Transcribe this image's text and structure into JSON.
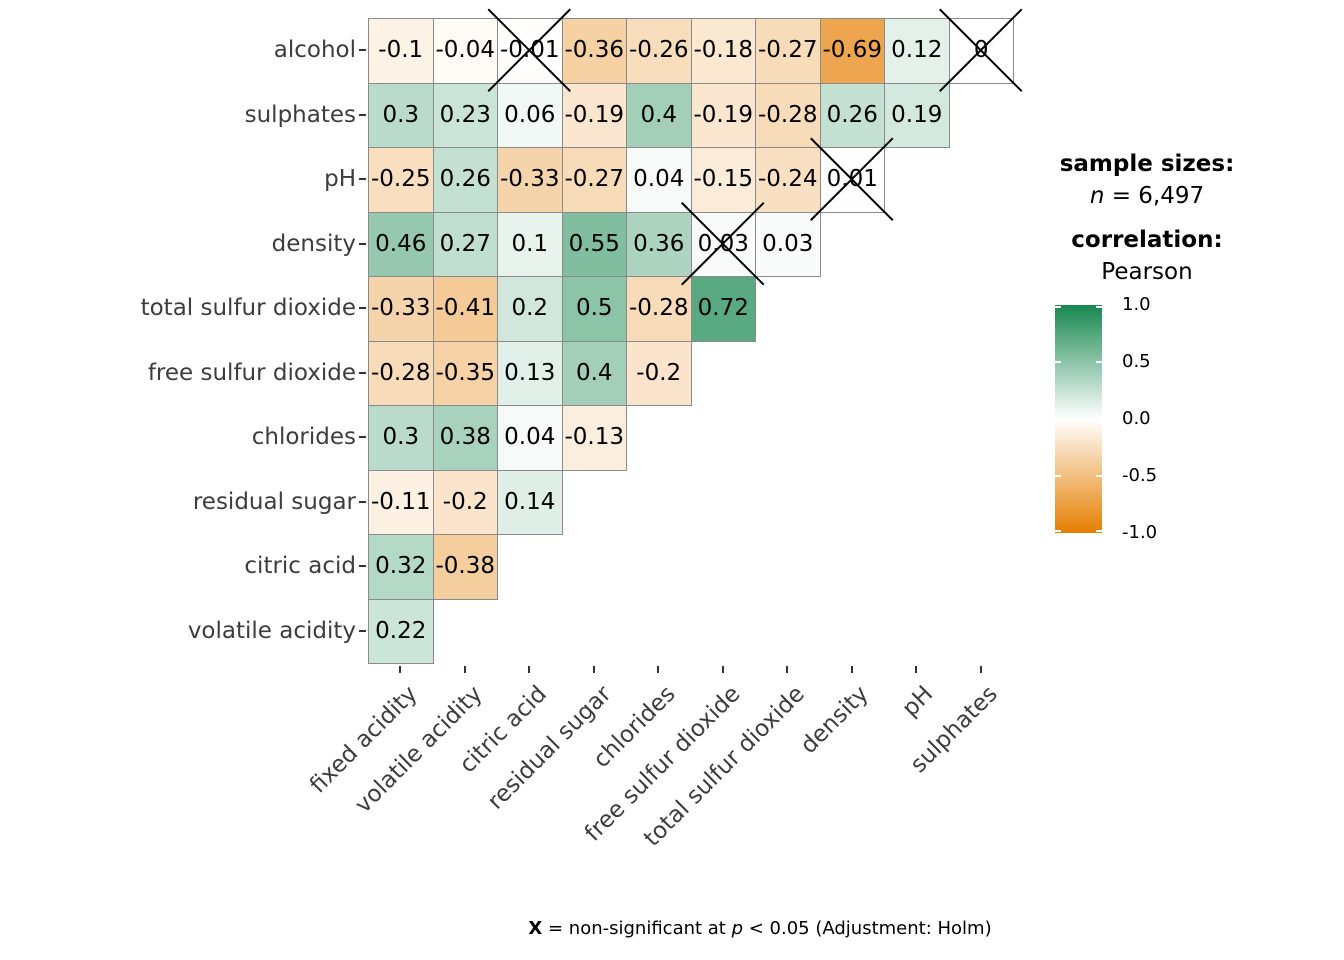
{
  "chart_data": {
    "type": "heatmap",
    "description": "Lower-triangular Pearson correlation matrix (correlogram) of wine physicochemical properties",
    "x_categories": [
      "fixed acidity",
      "volatile acidity",
      "citric acid",
      "residual sugar",
      "chlorides",
      "free sulfur dioxide",
      "total sulfur dioxide",
      "density",
      "pH",
      "sulphates"
    ],
    "y_categories_top_to_bottom": [
      "alcohol",
      "sulphates",
      "pH",
      "density",
      "total sulfur dioxide",
      "free sulfur dioxide",
      "chlorides",
      "residual sugar",
      "citric acid",
      "volatile acidity"
    ],
    "value_range": [
      -1,
      1
    ],
    "rows": [
      {
        "name": "alcohol",
        "values": [
          -0.1,
          -0.04,
          -0.01,
          -0.36,
          -0.26,
          -0.18,
          -0.27,
          -0.69,
          0.12,
          0
        ],
        "non_significant_col_indexes": [
          2,
          9
        ]
      },
      {
        "name": "sulphates",
        "values": [
          0.3,
          0.23,
          0.06,
          -0.19,
          0.4,
          -0.19,
          -0.28,
          0.26,
          0.19
        ],
        "non_significant_col_indexes": []
      },
      {
        "name": "pH",
        "values": [
          -0.25,
          0.26,
          -0.33,
          -0.27,
          0.04,
          -0.15,
          -0.24,
          0.01
        ],
        "non_significant_col_indexes": [
          7
        ]
      },
      {
        "name": "density",
        "values": [
          0.46,
          0.27,
          0.1,
          0.55,
          0.36,
          0.03,
          0.03
        ],
        "non_significant_col_indexes": [
          5
        ]
      },
      {
        "name": "total sulfur dioxide",
        "values": [
          -0.33,
          -0.41,
          0.2,
          0.5,
          -0.28,
          0.72
        ],
        "non_significant_col_indexes": []
      },
      {
        "name": "free sulfur dioxide",
        "values": [
          -0.28,
          -0.35,
          0.13,
          0.4,
          -0.2
        ],
        "non_significant_col_indexes": []
      },
      {
        "name": "chlorides",
        "values": [
          0.3,
          0.38,
          0.04,
          -0.13
        ],
        "non_significant_col_indexes": []
      },
      {
        "name": "residual sugar",
        "values": [
          -0.11,
          -0.2,
          0.14
        ],
        "non_significant_col_indexes": []
      },
      {
        "name": "citric acid",
        "values": [
          0.32,
          -0.38
        ],
        "non_significant_col_indexes": []
      },
      {
        "name": "volatile acidity",
        "values": [
          0.22
        ],
        "non_significant_col_indexes": []
      }
    ],
    "colorbar": {
      "tick_labels": [
        "1.0",
        "0.5",
        "0.0",
        "-0.5",
        "-1.0"
      ],
      "high_color": "#198851",
      "mid_color": "#ffffff",
      "low_color": "#e57e00"
    },
    "grid_line_color": "#8a8a8a",
    "axis_text_color": "#3d3d3d",
    "legend_position": "right"
  },
  "legend": {
    "sample_sizes_title": "sample sizes:",
    "sample_sizes_n": "n",
    "sample_sizes_value": " = 6,497",
    "correlation_title": "correlation:",
    "correlation_value": "Pearson"
  },
  "caption": {
    "x": "X",
    "seg1": " = non-significant at ",
    "p": "p",
    "seg2": " < 0.05 (Adjustment: Holm)"
  }
}
